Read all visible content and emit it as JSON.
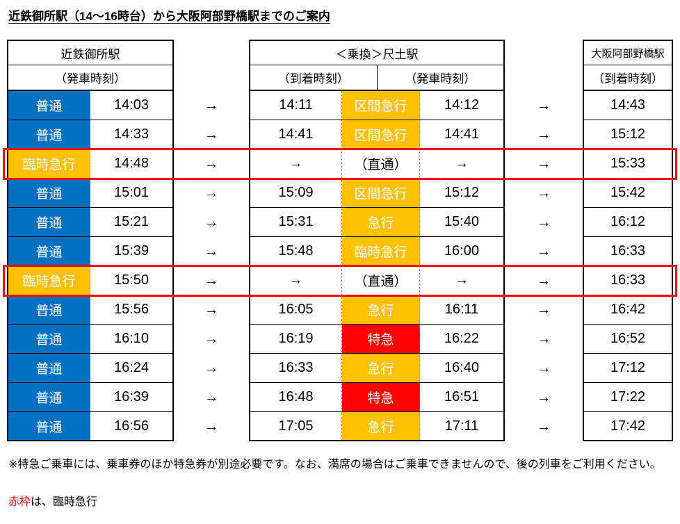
{
  "title": "近鉄御所駅（14～16時台）から大阪阿部野橋駅までのご案内",
  "arrow": "→",
  "colors": {
    "blue": "#0070C0",
    "orange": "#FFC000",
    "red": "#FF0000"
  },
  "headers": {
    "station1": "近鉄御所駅",
    "station1_sub": "（発車時刻）",
    "station2": "＜乗換＞尺土駅",
    "station2_arr": "（到着時刻）",
    "station2_dep": "（発車時刻）",
    "station3": "大阪阿部野橋駅",
    "station3_sub": "（到着時刻）"
  },
  "rows": [
    {
      "dep_type": "普通",
      "dep_type_color": "blue",
      "dep_time": "14:03",
      "arr2": "14:11",
      "type2": "区間急行",
      "type2_color": "orange",
      "dep2": "14:12",
      "arr3": "14:43",
      "highlight": false
    },
    {
      "dep_type": "普通",
      "dep_type_color": "blue",
      "dep_time": "14:33",
      "arr2": "14:41",
      "type2": "区間急行",
      "type2_color": "orange",
      "dep2": "14:41",
      "arr3": "15:12",
      "highlight": false
    },
    {
      "dep_type": "臨時急行",
      "dep_type_color": "orange",
      "dep_time": "14:48",
      "arr2": "→",
      "type2": "（直通）",
      "type2_color": "none",
      "dep2": "→",
      "arr3": "15:33",
      "highlight": true
    },
    {
      "dep_type": "普通",
      "dep_type_color": "blue",
      "dep_time": "15:01",
      "arr2": "15:09",
      "type2": "区間急行",
      "type2_color": "orange",
      "dep2": "15:12",
      "arr3": "15:42",
      "highlight": false
    },
    {
      "dep_type": "普通",
      "dep_type_color": "blue",
      "dep_time": "15:21",
      "arr2": "15:31",
      "type2": "急行",
      "type2_color": "orange",
      "dep2": "15:40",
      "arr3": "16:12",
      "highlight": false
    },
    {
      "dep_type": "普通",
      "dep_type_color": "blue",
      "dep_time": "15:39",
      "arr2": "15:48",
      "type2": "臨時急行",
      "type2_color": "orange",
      "dep2": "16:00",
      "arr3": "16:33",
      "highlight": false
    },
    {
      "dep_type": "臨時急行",
      "dep_type_color": "orange",
      "dep_time": "15:50",
      "arr2": "→",
      "type2": "（直通）",
      "type2_color": "none",
      "dep2": "→",
      "arr3": "16:33",
      "highlight": true
    },
    {
      "dep_type": "普通",
      "dep_type_color": "blue",
      "dep_time": "15:56",
      "arr2": "16:05",
      "type2": "急行",
      "type2_color": "orange",
      "dep2": "16:11",
      "arr3": "16:42",
      "highlight": false
    },
    {
      "dep_type": "普通",
      "dep_type_color": "blue",
      "dep_time": "16:10",
      "arr2": "16:19",
      "type2": "特急",
      "type2_color": "red",
      "dep2": "16:22",
      "arr3": "16:52",
      "highlight": false
    },
    {
      "dep_type": "普通",
      "dep_type_color": "blue",
      "dep_time": "16:24",
      "arr2": "16:33",
      "type2": "急行",
      "type2_color": "orange",
      "dep2": "16:40",
      "arr3": "17:12",
      "highlight": false
    },
    {
      "dep_type": "普通",
      "dep_type_color": "blue",
      "dep_time": "16:39",
      "arr2": "16:48",
      "type2": "特急",
      "type2_color": "red",
      "dep2": "16:51",
      "arr3": "17:22",
      "highlight": false
    },
    {
      "dep_type": "普通",
      "dep_type_color": "blue",
      "dep_time": "16:56",
      "arr2": "17:05",
      "type2": "急行",
      "type2_color": "orange",
      "dep2": "17:11",
      "arr3": "17:42",
      "highlight": false
    }
  ],
  "note": "※特急ご乗車には、乗車券のほか特急券が別途必要です。なお、満席の場合はご乗車できませんので、後の列車をご利用ください。",
  "legend": {
    "red_label": "赤枠",
    "rest": "は、臨時急行"
  }
}
